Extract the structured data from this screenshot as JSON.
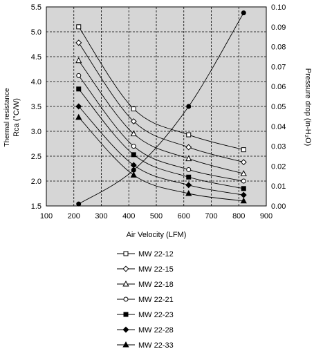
{
  "chart_data": {
    "type": "line",
    "title": "",
    "xlabel": "Air Velocity (LFM)",
    "ylabel_left_line1": "Thermal resistance",
    "ylabel_left_line2": "Rca (°C/W)",
    "ylabel_right": "Pressure drop (in-H₂O)",
    "xlim": [
      100,
      900
    ],
    "ylim_left": [
      1.5,
      5.5
    ],
    "ylim_right": [
      0.0,
      0.1
    ],
    "x_ticks": [
      "100",
      "200",
      "300",
      "400",
      "500",
      "600",
      "700",
      "800",
      "900"
    ],
    "y_left_ticks": [
      "1.5",
      "2.0",
      "2.5",
      "3.0",
      "3.5",
      "4.0",
      "4.5",
      "5.0",
      "5.5"
    ],
    "y_right_ticks": [
      "0.00",
      "0.01",
      "0.02",
      "0.03",
      "0.04",
      "0.05",
      "0.06",
      "0.07",
      "0.08",
      "0.09",
      "0.10"
    ],
    "grid": true,
    "legend_position": "below",
    "x": [
      200,
      400,
      600,
      800
    ],
    "series": [
      {
        "name": "MW 22-12",
        "marker": "square-open",
        "axis": "left",
        "values": [
          5.1,
          3.45,
          2.93,
          2.63
        ]
      },
      {
        "name": "MW 22-15",
        "marker": "diamond-open",
        "axis": "left",
        "values": [
          4.78,
          3.2,
          2.68,
          2.38
        ]
      },
      {
        "name": "MW 22-18",
        "marker": "triangle-open",
        "axis": "left",
        "values": [
          4.42,
          2.95,
          2.45,
          2.15
        ]
      },
      {
        "name": "MW 22-21",
        "marker": "circle-open",
        "axis": "left",
        "values": [
          4.12,
          2.7,
          2.23,
          2.0
        ]
      },
      {
        "name": "MW 22-23",
        "marker": "square-filled",
        "axis": "left",
        "values": [
          3.85,
          2.53,
          2.08,
          1.85
        ]
      },
      {
        "name": "MW 22-28",
        "marker": "diamond-filled",
        "axis": "left",
        "values": [
          3.5,
          2.32,
          1.92,
          1.72
        ]
      },
      {
        "name": "MW 22-33",
        "marker": "triangle-filled",
        "axis": "left",
        "values": [
          3.28,
          2.12,
          1.75,
          1.6
        ]
      }
    ],
    "pressure_curve": {
      "axis": "right",
      "marker": "circle-filled",
      "x": [
        200,
        400,
        600,
        800
      ],
      "values": [
        0.001,
        0.018,
        0.05,
        0.097
      ]
    }
  }
}
